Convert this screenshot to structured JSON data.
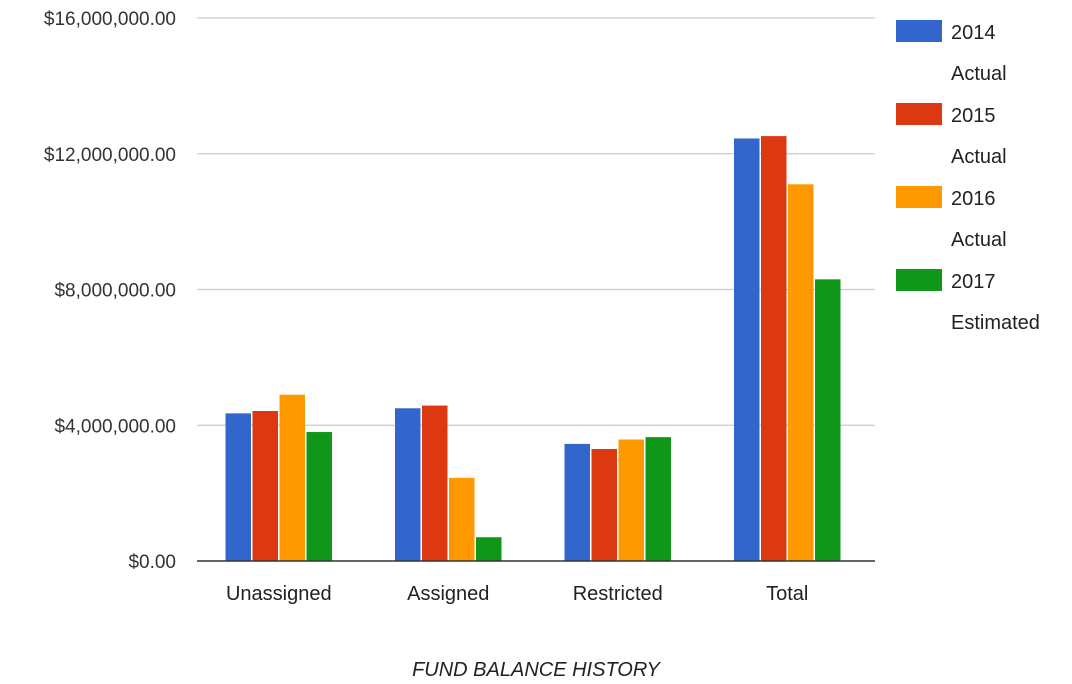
{
  "chart_data": {
    "type": "bar",
    "xlabel": "FUND BALANCE HISTORY",
    "ylabel": "",
    "ylim": [
      0,
      16000000
    ],
    "yticks": [
      {
        "value": 0,
        "label": "$0.00"
      },
      {
        "value": 4000000,
        "label": "$4,000,000.00"
      },
      {
        "value": 8000000,
        "label": "$8,000,000.00"
      },
      {
        "value": 12000000,
        "label": "$12,000,000.00"
      },
      {
        "value": 16000000,
        "label": "$16,000,000.00"
      }
    ],
    "categories": [
      "Unassigned",
      "Assigned",
      "Restricted",
      "Total"
    ],
    "series": [
      {
        "name": "2014 Actual",
        "legend_lines": [
          "2014",
          "Actual"
        ],
        "color": "#3366cc",
        "values": [
          4350000,
          4500000,
          3450000,
          12450000
        ]
      },
      {
        "name": "2015 Actual",
        "legend_lines": [
          "2015",
          "Actual"
        ],
        "color": "#dc3912",
        "values": [
          4420000,
          4580000,
          3300000,
          12520000
        ]
      },
      {
        "name": "2016 Actual",
        "legend_lines": [
          "2016",
          "Actual"
        ],
        "color": "#ff9900",
        "values": [
          4900000,
          2450000,
          3580000,
          11100000
        ]
      },
      {
        "name": "2017 Estimated",
        "legend_lines": [
          "2017",
          "Estimated"
        ],
        "color": "#109618",
        "values": [
          3800000,
          700000,
          3650000,
          8300000
        ]
      }
    ],
    "grid": true,
    "legend_position": "right"
  }
}
